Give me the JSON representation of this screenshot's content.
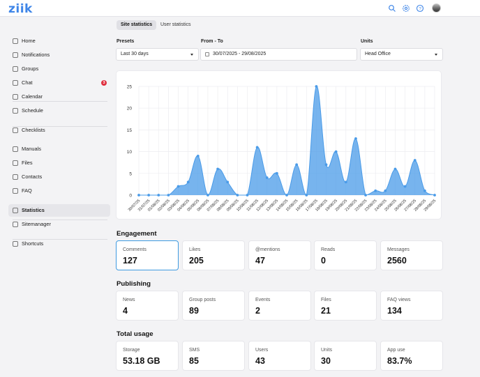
{
  "app": {
    "logo": "ziik"
  },
  "header": {
    "icons": [
      "search-icon",
      "gear-icon",
      "help-icon"
    ]
  },
  "sidebar": {
    "items": [
      {
        "label": "Home",
        "icon": "home-icon"
      },
      {
        "label": "Notifications",
        "icon": "bell-icon"
      },
      {
        "label": "Groups",
        "icon": "groups-icon"
      },
      {
        "label": "Chat",
        "icon": "chat-icon",
        "badge": "3"
      },
      {
        "label": "Calendar",
        "icon": "calendar-icon"
      },
      {
        "label": "Schedule",
        "icon": "schedule-icon"
      },
      {
        "label": "Checklists",
        "icon": "checklist-icon"
      },
      {
        "label": "Manuals",
        "icon": "manual-icon"
      },
      {
        "label": "Files",
        "icon": "files-icon"
      },
      {
        "label": "Contacts",
        "icon": "contacts-icon"
      },
      {
        "label": "FAQ",
        "icon": "faq-icon"
      },
      {
        "label": "Statistics",
        "icon": "statistics-icon",
        "active": true
      },
      {
        "label": "Sitemanager",
        "icon": "sitemanager-icon"
      },
      {
        "label": "Shortcuts",
        "icon": "link-icon"
      }
    ]
  },
  "tabs": [
    {
      "label": "Site statistics",
      "active": true
    },
    {
      "label": "User statistics",
      "active": false
    }
  ],
  "filters": {
    "presets_label": "Presets",
    "presets_value": "Last 30 days",
    "range_label": "From - To",
    "range_value": "30/07/2025 - 29/08/2025",
    "units_label": "Units",
    "units_value": "Head Office"
  },
  "chart_data": {
    "type": "area",
    "x": [
      "30/07/25",
      "31/07/25",
      "01/08/25",
      "02/08/25",
      "03/08/25",
      "04/08/25",
      "05/08/25",
      "06/08/25",
      "07/08/25",
      "08/08/25",
      "09/08/25",
      "10/08/25",
      "11/08/25",
      "12/08/25",
      "13/08/25",
      "14/08/25",
      "15/08/25",
      "16/08/25",
      "17/08/25",
      "18/08/25",
      "19/08/25",
      "20/08/25",
      "21/08/25",
      "22/08/25",
      "23/08/25",
      "24/08/25",
      "25/08/25",
      "26/08/25",
      "27/08/25",
      "28/08/25",
      "29/08/25"
    ],
    "values": [
      0,
      0,
      0,
      0,
      2,
      3,
      9,
      0,
      6,
      3,
      0,
      0,
      11,
      4,
      5,
      0,
      7,
      0,
      25,
      7,
      10,
      3,
      13,
      0,
      1,
      1,
      6,
      2,
      8,
      1,
      0
    ],
    "ylim": [
      0,
      25
    ],
    "yticks": [
      0,
      5,
      10,
      15,
      20,
      25
    ],
    "grid": true,
    "color": "#4a9be8"
  },
  "engagement": {
    "title": "Engagement",
    "stats": [
      {
        "label": "Comments",
        "value": "127",
        "selected": true
      },
      {
        "label": "Likes",
        "value": "205"
      },
      {
        "label": "@mentions",
        "value": "47"
      },
      {
        "label": "Reads",
        "value": "0"
      },
      {
        "label": "Messages",
        "value": "2560"
      }
    ]
  },
  "publishing": {
    "title": "Publishing",
    "stats": [
      {
        "label": "News",
        "value": "4"
      },
      {
        "label": "Group posts",
        "value": "89"
      },
      {
        "label": "Events",
        "value": "2"
      },
      {
        "label": "Files",
        "value": "21"
      },
      {
        "label": "FAQ views",
        "value": "134"
      }
    ]
  },
  "total_usage": {
    "title": "Total usage",
    "stats": [
      {
        "label": "Storage",
        "value": "53.18 GB"
      },
      {
        "label": "SMS",
        "value": "85"
      },
      {
        "label": "Users",
        "value": "43"
      },
      {
        "label": "Units",
        "value": "30"
      },
      {
        "label": "App use",
        "value": "83.7%"
      }
    ]
  }
}
